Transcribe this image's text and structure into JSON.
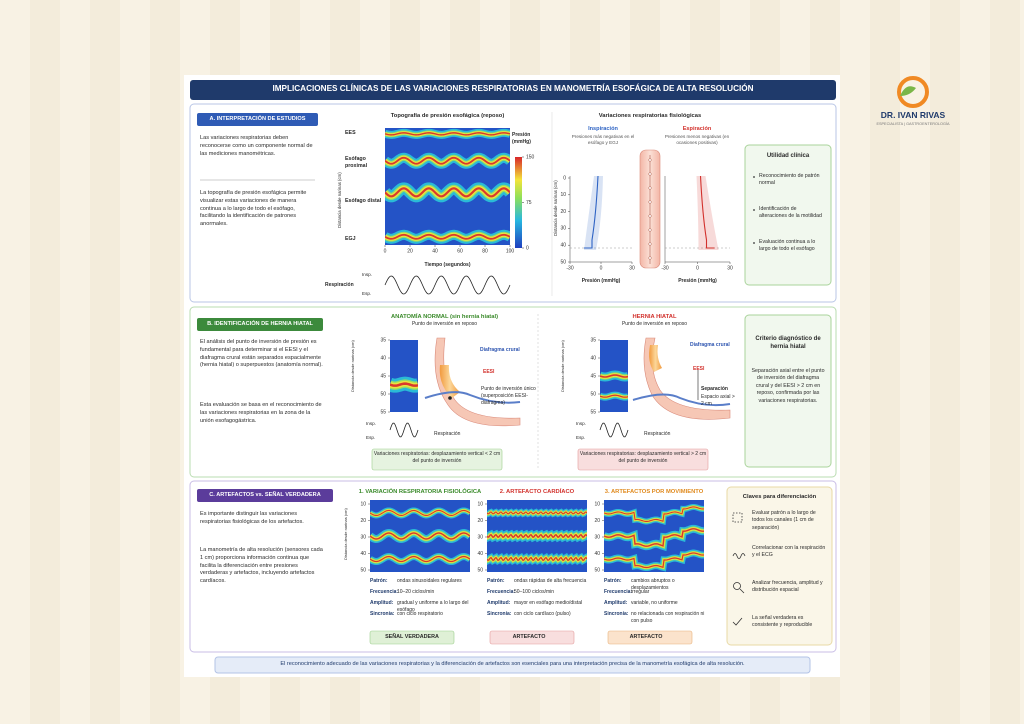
{
  "header": {
    "title": "IMPLICACIONES CLÍNICAS DE LAS VARIACIONES RESPIRATORIAS EN MANOMETRÍA ESOFÁGICA DE ALTA RESOLUCIÓN"
  },
  "logo": {
    "name": "DR. IVAN RIVAS",
    "tagline": "ESPECIALISTA | GASTROENTEROLOGÍA"
  },
  "section_a": {
    "heading": "A. INTERPRETACIÓN DE ESTUDIOS",
    "paragraphs": [
      "Las variaciones respiratorias deben reconocerse como un componente normal de las mediciones manométricas.",
      "La topografía de presión esofágica permite visualizar estas variaciones de manera continua a lo largo de todo el esófago, facilitando la identificación de patrones anormales."
    ],
    "topography": {
      "title": "Topografía de presión esofágica (reposo)",
      "y_label": "Distancia desde narinas (cm)",
      "labels": [
        "EES",
        "Esófago proximal",
        "Esófago distal",
        "EGJ"
      ],
      "colorbar_label": "Presión (mmHg)",
      "colorbar_ticks": [
        150,
        75,
        0
      ],
      "x_ticks": [
        0,
        20,
        40,
        60,
        80,
        100
      ],
      "x_label": "Tiempo (segundos)",
      "respiration": "Respiración",
      "insp": "Insp.",
      "esp": "Esp."
    },
    "variations": {
      "title": "Variaciones respiratorias fisiológicas",
      "inspiration": {
        "title": "Inspiración",
        "note": "Presiones más negativas en el esófago y EGJ"
      },
      "expiration": {
        "title": "Espiración",
        "note": "Presiones menos negativas (en ocasiones positivas)"
      },
      "y_label": "Distancia desde narinas (cm)",
      "y_ticks": [
        0,
        10,
        20,
        30,
        40,
        50
      ],
      "x_ticks": [
        -30,
        0,
        30
      ],
      "x_label": "Presión (mmHg)"
    },
    "utility": {
      "title": "Utilidad clínica",
      "items": [
        "Reconocimiento de patrón normal",
        "Identificación de alteraciones de la motilidad",
        "Evaluación continua a lo largo de todo el esófago"
      ]
    }
  },
  "section_b": {
    "heading": "B. IDENTIFICACIÓN DE HERNIA HIATAL",
    "paragraphs": [
      "El análisis del punto de inversión de presión es fundamental para determinar si el EESI y el diafragma crural están separados espacialmente (hernia hiatal) o superpuestos (anatomía normal).",
      "Esta evaluación se basa en el reconocimiento de las variaciones respiratorias en la zona de la unión esofagogástrica."
    ],
    "y_label": "Distancia desde narinas (cm)",
    "y_ticks": [
      35,
      40,
      45,
      50,
      55
    ],
    "normal": {
      "title": "ANATOMÍA NORMAL (sin hernia hiatal)",
      "subtitle": "Punto de inversión en reposo",
      "diaphragm": "Diafragma crural",
      "eesi": "EESI",
      "point": "Punto de inversión único (superposición EESI-diafragma)",
      "insp": "Insp.",
      "esp": "Esp.",
      "respiration": "Respiración",
      "note": "Variaciones respiratorias: desplazamiento vertical < 2 cm del punto de inversión"
    },
    "hernia": {
      "title": "HERNIA HIATAL",
      "subtitle": "Punto de inversión en reposo",
      "diaphragm": "Diafragma crural",
      "eesi": "EESI",
      "separation": "Separación",
      "axial": "Espacio axial > 2 cm",
      "insp": "Insp.",
      "esp": "Esp.",
      "respiration": "Respiración",
      "note": "Variaciones respiratorias: desplazamiento vertical > 2 cm del punto de inversión"
    },
    "criterion": {
      "title": "Criterio diagnóstico de hernia hiatal",
      "text": "Separación axial entre el punto de inversión del diafragma crural y del EESI > 2 cm en reposo, confirmada por las variaciones respiratorias."
    }
  },
  "section_c": {
    "heading": "C. ARTEFACTOS vs. SEÑAL VERDADERA",
    "paragraphs": [
      "Es importante distinguir las variaciones respiratorias fisiológicas de los artefactos.",
      "La manometría de alta resolución (sensores cada 1 cm) proporciona información continua que facilita la diferenciación entre presiones verdaderas y artefactos, incluyendo artefactos cardíacos."
    ],
    "y_label": "Distancia desde narinas (cm)",
    "y_ticks": [
      10,
      20,
      30,
      40,
      50
    ],
    "panels": [
      {
        "title": "1. VARIACIÓN RESPIRATORIA FISIOLÓGICA",
        "details": [
          [
            "Patrón:",
            "ondas sinusoidales regulares"
          ],
          [
            "Frecuencia:",
            "10–20 ciclos/min"
          ],
          [
            "Amplitud:",
            "gradual y uniforme a lo largo del esófago"
          ],
          [
            "Sincronía:",
            "con ciclo respiratorio"
          ]
        ],
        "badge": "SEÑAL VERDADERA"
      },
      {
        "title": "2. ARTEFACTO CARDÍACO",
        "details": [
          [
            "Patrón:",
            "ondas rápidas de alta frecuencia"
          ],
          [
            "Frecuencia:",
            "50–100 ciclos/min"
          ],
          [
            "Amplitud:",
            "mayor en esófago medio/distal"
          ],
          [
            "Sincronía:",
            "con ciclo cardíaco (pulso)"
          ]
        ],
        "badge": "ARTEFACTO"
      },
      {
        "title": "3. ARTEFACTOS POR MOVIMIENTO",
        "details": [
          [
            "Patrón:",
            "cambios abruptos o desplazamientos"
          ],
          [
            "Frecuencia:",
            "irregular"
          ],
          [
            "Amplitud:",
            "variable, no uniforme"
          ],
          [
            "Sincronía:",
            "no relacionada con respiración ni con pulso"
          ]
        ],
        "badge": "ARTEFACTO"
      }
    ],
    "keys": {
      "title": "Claves para diferenciación",
      "items": [
        "Evaluar patrón a lo largo de todos los canales (1 cm de separación)",
        "Correlacionar con la respiración y el ECG",
        "Analizar frecuencia, amplitud y distribución espacial",
        "La señal verdadera es consistente y reproducible"
      ]
    }
  },
  "footer": "El reconocimiento adecuado de las variaciones respiratorias y la diferenciación de artefactos son esenciales para una interpretación precisa de la manometría esofágica de alta resolución."
}
